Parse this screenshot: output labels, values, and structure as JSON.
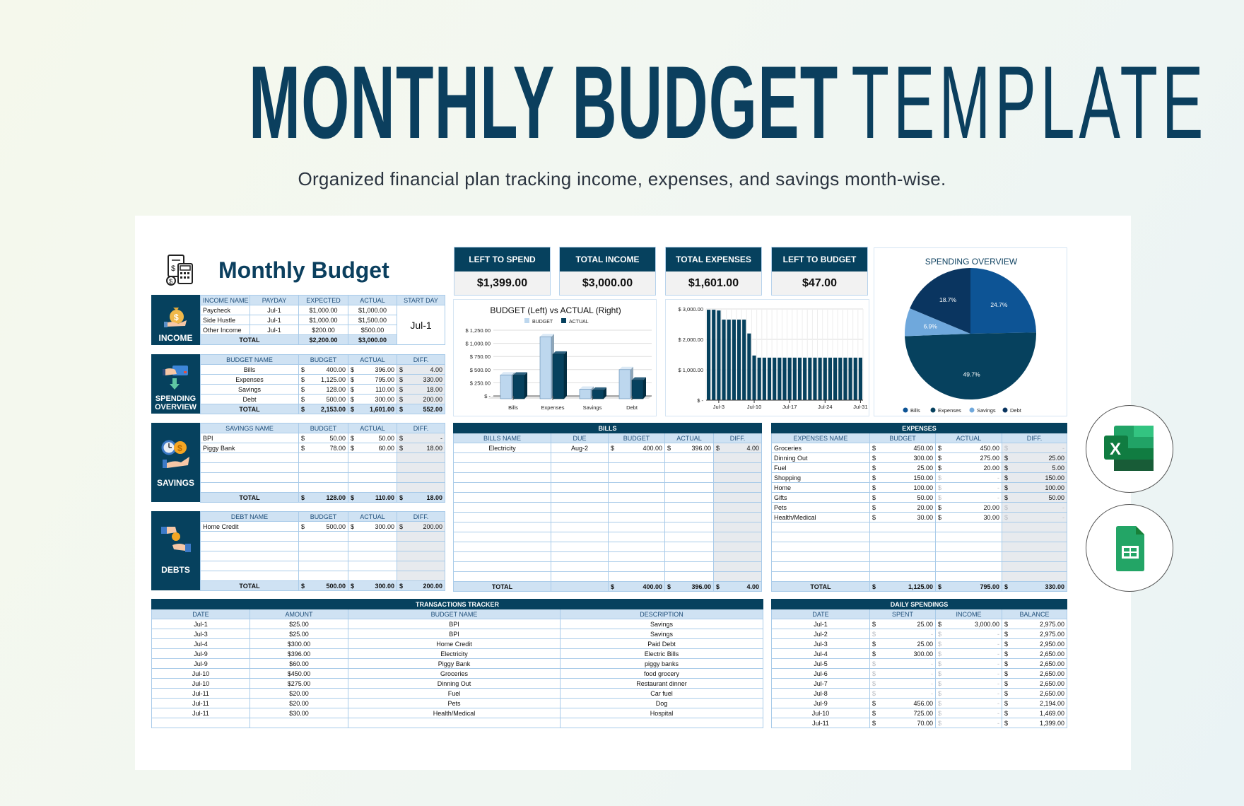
{
  "header": {
    "title_bold": "MONTHLY BUDGET",
    "title_light": "TEMPLATE",
    "subtitle": "Organized financial plan tracking income, expenses, and savings month-wise."
  },
  "sheet": {
    "title": "Monthly Budget",
    "icon": "calculator-invoice-icon"
  },
  "currency": "$",
  "colors": {
    "dark": "#06415e",
    "header_bg": "#cfe2f3",
    "border": "#a9cbe9",
    "diff_bg": "#e7eaee",
    "title": "#0b3f5e"
  },
  "kpis": [
    {
      "label": "LEFT TO SPEND",
      "value": "$1,399.00"
    },
    {
      "label": "TOTAL INCOME",
      "value": "$3,000.00"
    },
    {
      "label": "TOTAL EXPENSES",
      "value": "$1,601.00"
    },
    {
      "label": "LEFT TO BUDGET",
      "value": "$47.00"
    }
  ],
  "income": {
    "label": "INCOME",
    "icon": "money-bag-hand-icon",
    "headers": [
      "INCOME NAME",
      "PAYDAY",
      "EXPECTED",
      "ACTUAL",
      "START DAY"
    ],
    "rows": [
      [
        "Paycheck",
        "Jul-1",
        "$1,000.00",
        "$1,000.00"
      ],
      [
        "Side Hustle",
        "Jul-1",
        "$1,000.00",
        "$1,500.00"
      ],
      [
        "Other Income",
        "Jul-1",
        "$200.00",
        "$500.00"
      ]
    ],
    "total_label": "TOTAL",
    "total": [
      "$2,200.00",
      "$3,000.00"
    ],
    "start_day": "Jul-1"
  },
  "spending": {
    "label": "SPENDING OVERVIEW",
    "icon": "card-payment-icon",
    "headers": [
      "BUDGET NAME",
      "BUDGET",
      "ACTUAL",
      "DIFF."
    ],
    "rows": [
      [
        "Bills",
        "400.00",
        "396.00",
        "4.00"
      ],
      [
        "Expenses",
        "1,125.00",
        "795.00",
        "330.00"
      ],
      [
        "Savings",
        "128.00",
        "110.00",
        "18.00"
      ],
      [
        "Debt",
        "500.00",
        "300.00",
        "200.00"
      ]
    ],
    "total": [
      "TOTAL",
      "2,153.00",
      "1,601.00",
      "552.00"
    ]
  },
  "savings": {
    "label": "SAVINGS",
    "icon": "clock-coin-hand-icon",
    "headers": [
      "SAVINGS NAME",
      "BUDGET",
      "ACTUAL",
      "DIFF."
    ],
    "rows": [
      [
        "BPI",
        "50.00",
        "50.00",
        "-"
      ],
      [
        "Piggy Bank",
        "78.00",
        "60.00",
        "18.00"
      ],
      [
        "",
        "",
        "",
        ""
      ],
      [
        "",
        "",
        "",
        ""
      ],
      [
        "",
        "",
        "",
        ""
      ],
      [
        "",
        "",
        "",
        ""
      ]
    ],
    "total": [
      "TOTAL",
      "128.00",
      "110.00",
      "18.00"
    ]
  },
  "debts": {
    "label": "DEBTS",
    "icon": "hands-money-exchange-icon",
    "headers": [
      "DEBT NAME",
      "BUDGET",
      "ACTUAL",
      "DIFF."
    ],
    "rows": [
      [
        "Home Credit",
        "500.00",
        "300.00",
        "200.00"
      ],
      [
        "",
        "",
        "",
        ""
      ],
      [
        "",
        "",
        "",
        ""
      ],
      [
        "",
        "",
        "",
        ""
      ],
      [
        "",
        "",
        "",
        ""
      ],
      [
        "",
        "",
        "",
        ""
      ]
    ],
    "total": [
      "TOTAL",
      "500.00",
      "300.00",
      "200.00"
    ]
  },
  "bills": {
    "title": "BILLS",
    "headers": [
      "BILLS NAME",
      "DUE",
      "BUDGET",
      "ACTUAL",
      "DIFF."
    ],
    "rows": [
      [
        "Electricity",
        "Aug-2",
        "400.00",
        "396.00",
        "4.00"
      ],
      [
        "",
        "",
        "",
        "",
        ""
      ],
      [
        "",
        "",
        "",
        "",
        ""
      ],
      [
        "",
        "",
        "",
        "",
        ""
      ],
      [
        "",
        "",
        "",
        "",
        ""
      ],
      [
        "",
        "",
        "",
        "",
        ""
      ],
      [
        "",
        "",
        "",
        "",
        ""
      ],
      [
        "",
        "",
        "",
        "",
        ""
      ],
      [
        "",
        "",
        "",
        "",
        ""
      ],
      [
        "",
        "",
        "",
        "",
        ""
      ],
      [
        "",
        "",
        "",
        "",
        ""
      ],
      [
        "",
        "",
        "",
        "",
        ""
      ],
      [
        "",
        "",
        "",
        "",
        ""
      ],
      [
        "",
        "",
        "",
        "",
        ""
      ]
    ],
    "total": [
      "TOTAL",
      "",
      "400.00",
      "396.00",
      "4.00"
    ]
  },
  "expenses": {
    "title": "EXPENSES",
    "headers": [
      "EXPENSES NAME",
      "BUDGET",
      "ACTUAL",
      "DIFF."
    ],
    "rows": [
      [
        "Groceries",
        "450.00",
        "450.00",
        "-"
      ],
      [
        "Dinning Out",
        "300.00",
        "275.00",
        "25.00"
      ],
      [
        "Fuel",
        "25.00",
        "20.00",
        "5.00"
      ],
      [
        "Shopping",
        "150.00",
        "-",
        "150.00"
      ],
      [
        "Home",
        "100.00",
        "-",
        "100.00"
      ],
      [
        "Gifts",
        "50.00",
        "-",
        "50.00"
      ],
      [
        "Pets",
        "20.00",
        "20.00",
        "-"
      ],
      [
        "Health/Medical",
        "30.00",
        "30.00",
        "-"
      ],
      [
        "",
        "",
        "",
        ""
      ],
      [
        "",
        "",
        "",
        ""
      ],
      [
        "",
        "",
        "",
        ""
      ],
      [
        "",
        "",
        "",
        ""
      ],
      [
        "",
        "",
        "",
        ""
      ],
      [
        "",
        "",
        "",
        ""
      ]
    ],
    "total": [
      "TOTAL",
      "1,125.00",
      "795.00",
      "330.00"
    ]
  },
  "transactions": {
    "title": "TRANSACTIONS TRACKER",
    "headers": [
      "DATE",
      "AMOUNT",
      "BUDGET NAME",
      "DESCRIPTION"
    ],
    "rows": [
      [
        "Jul-1",
        "$25.00",
        "BPI",
        "Savings"
      ],
      [
        "Jul-3",
        "$25.00",
        "BPI",
        "Savings"
      ],
      [
        "Jul-4",
        "$300.00",
        "Home Credit",
        "Paid Debt"
      ],
      [
        "Jul-9",
        "$396.00",
        "Electricity",
        "Electric Bills"
      ],
      [
        "Jul-9",
        "$60.00",
        "Piggy Bank",
        "piggy banks"
      ],
      [
        "Jul-10",
        "$450.00",
        "Groceries",
        "food grocery"
      ],
      [
        "Jul-10",
        "$275.00",
        "Dinning Out",
        "Restaurant dinner"
      ],
      [
        "Jul-11",
        "$20.00",
        "Fuel",
        "Car fuel"
      ],
      [
        "Jul-11",
        "$20.00",
        "Pets",
        "Dog"
      ],
      [
        "Jul-11",
        "$30.00",
        "Health/Medical",
        "Hospital"
      ],
      [
        "",
        "",
        "",
        ""
      ]
    ]
  },
  "daily": {
    "title": "DAILY SPENDINGS",
    "headers": [
      "DATE",
      "SPENT",
      "INCOME",
      "BALANCE"
    ],
    "rows": [
      [
        "Jul-1",
        "25.00",
        "3,000.00",
        "2,975.00"
      ],
      [
        "Jul-2",
        "-",
        "-",
        "2,975.00"
      ],
      [
        "Jul-3",
        "25.00",
        "-",
        "2,950.00"
      ],
      [
        "Jul-4",
        "300.00",
        "-",
        "2,650.00"
      ],
      [
        "Jul-5",
        "-",
        "-",
        "2,650.00"
      ],
      [
        "Jul-6",
        "-",
        "-",
        "2,650.00"
      ],
      [
        "Jul-7",
        "-",
        "-",
        "2,650.00"
      ],
      [
        "Jul-8",
        "-",
        "-",
        "2,650.00"
      ],
      [
        "Jul-9",
        "456.00",
        "-",
        "2,194.00"
      ],
      [
        "Jul-10",
        "725.00",
        "-",
        "1,469.00"
      ],
      [
        "Jul-11",
        "70.00",
        "-",
        "1,399.00"
      ]
    ]
  },
  "chart_data": [
    {
      "type": "bar",
      "title": "BUDGET (Left) vs ACTUAL (Right)",
      "categories": [
        "Bills",
        "Expenses",
        "Savings",
        "Debt"
      ],
      "series": [
        {
          "name": "BUDGET",
          "values": [
            400,
            1125,
            128,
            500
          ],
          "color": "#bdd7ee"
        },
        {
          "name": "ACTUAL",
          "values": [
            396,
            795,
            110,
            300
          ],
          "color": "#06415e"
        }
      ],
      "ylim": [
        0,
        1250
      ],
      "yticks": [
        0,
        250,
        500,
        750,
        1000,
        1250
      ],
      "ytick_labels": [
        "$ -",
        "$ 250.00",
        "$ 500.00",
        "$ 750.00",
        "$ 1,000.00",
        "$ 1,250.00"
      ],
      "legend": "top",
      "grid": true
    },
    {
      "type": "bar",
      "title": "",
      "x": [
        "Jul-1",
        "Jul-2",
        "Jul-3",
        "Jul-4",
        "Jul-5",
        "Jul-6",
        "Jul-7",
        "Jul-8",
        "Jul-9",
        "Jul-10",
        "Jul-11",
        "Jul-12",
        "Jul-13",
        "Jul-14",
        "Jul-15",
        "Jul-16",
        "Jul-17",
        "Jul-18",
        "Jul-19",
        "Jul-20",
        "Jul-21",
        "Jul-22",
        "Jul-23",
        "Jul-24",
        "Jul-25",
        "Jul-26",
        "Jul-27",
        "Jul-28",
        "Jul-29",
        "Jul-30",
        "Jul-31"
      ],
      "values": [
        2975,
        2975,
        2950,
        2650,
        2650,
        2650,
        2650,
        2650,
        2194,
        1469,
        1399,
        1399,
        1399,
        1399,
        1399,
        1399,
        1399,
        1399,
        1399,
        1399,
        1399,
        1399,
        1399,
        1399,
        1399,
        1399,
        1399,
        1399,
        1399,
        1399,
        1399
      ],
      "color": "#06415e",
      "ylim": [
        0,
        3000
      ],
      "yticks": [
        0,
        1000,
        2000,
        3000
      ],
      "ytick_labels": [
        "$ -",
        "$ 1,000.00",
        "$ 2,000.00",
        "$ 3,000.00"
      ],
      "xtick_labels": [
        "Jul-3",
        "Jul-10",
        "Jul-17",
        "Jul-24",
        "Jul-31"
      ],
      "grid": true
    },
    {
      "type": "pie",
      "title": "SPENDING OVERVIEW",
      "labels": [
        "Bills",
        "Expenses",
        "Savings",
        "Debt"
      ],
      "values": [
        24.7,
        49.7,
        6.9,
        18.7
      ],
      "value_labels": [
        "24.7%",
        "49.7%",
        "6.9%",
        "18.7%"
      ],
      "colors": [
        "#0d5495",
        "#06415e",
        "#6fa8dc",
        "#0a3560"
      ],
      "legend": "bottom"
    }
  ],
  "apps": [
    {
      "name": "Microsoft Excel",
      "icon": "excel-icon"
    },
    {
      "name": "Google Sheets",
      "icon": "google-sheets-icon"
    }
  ]
}
